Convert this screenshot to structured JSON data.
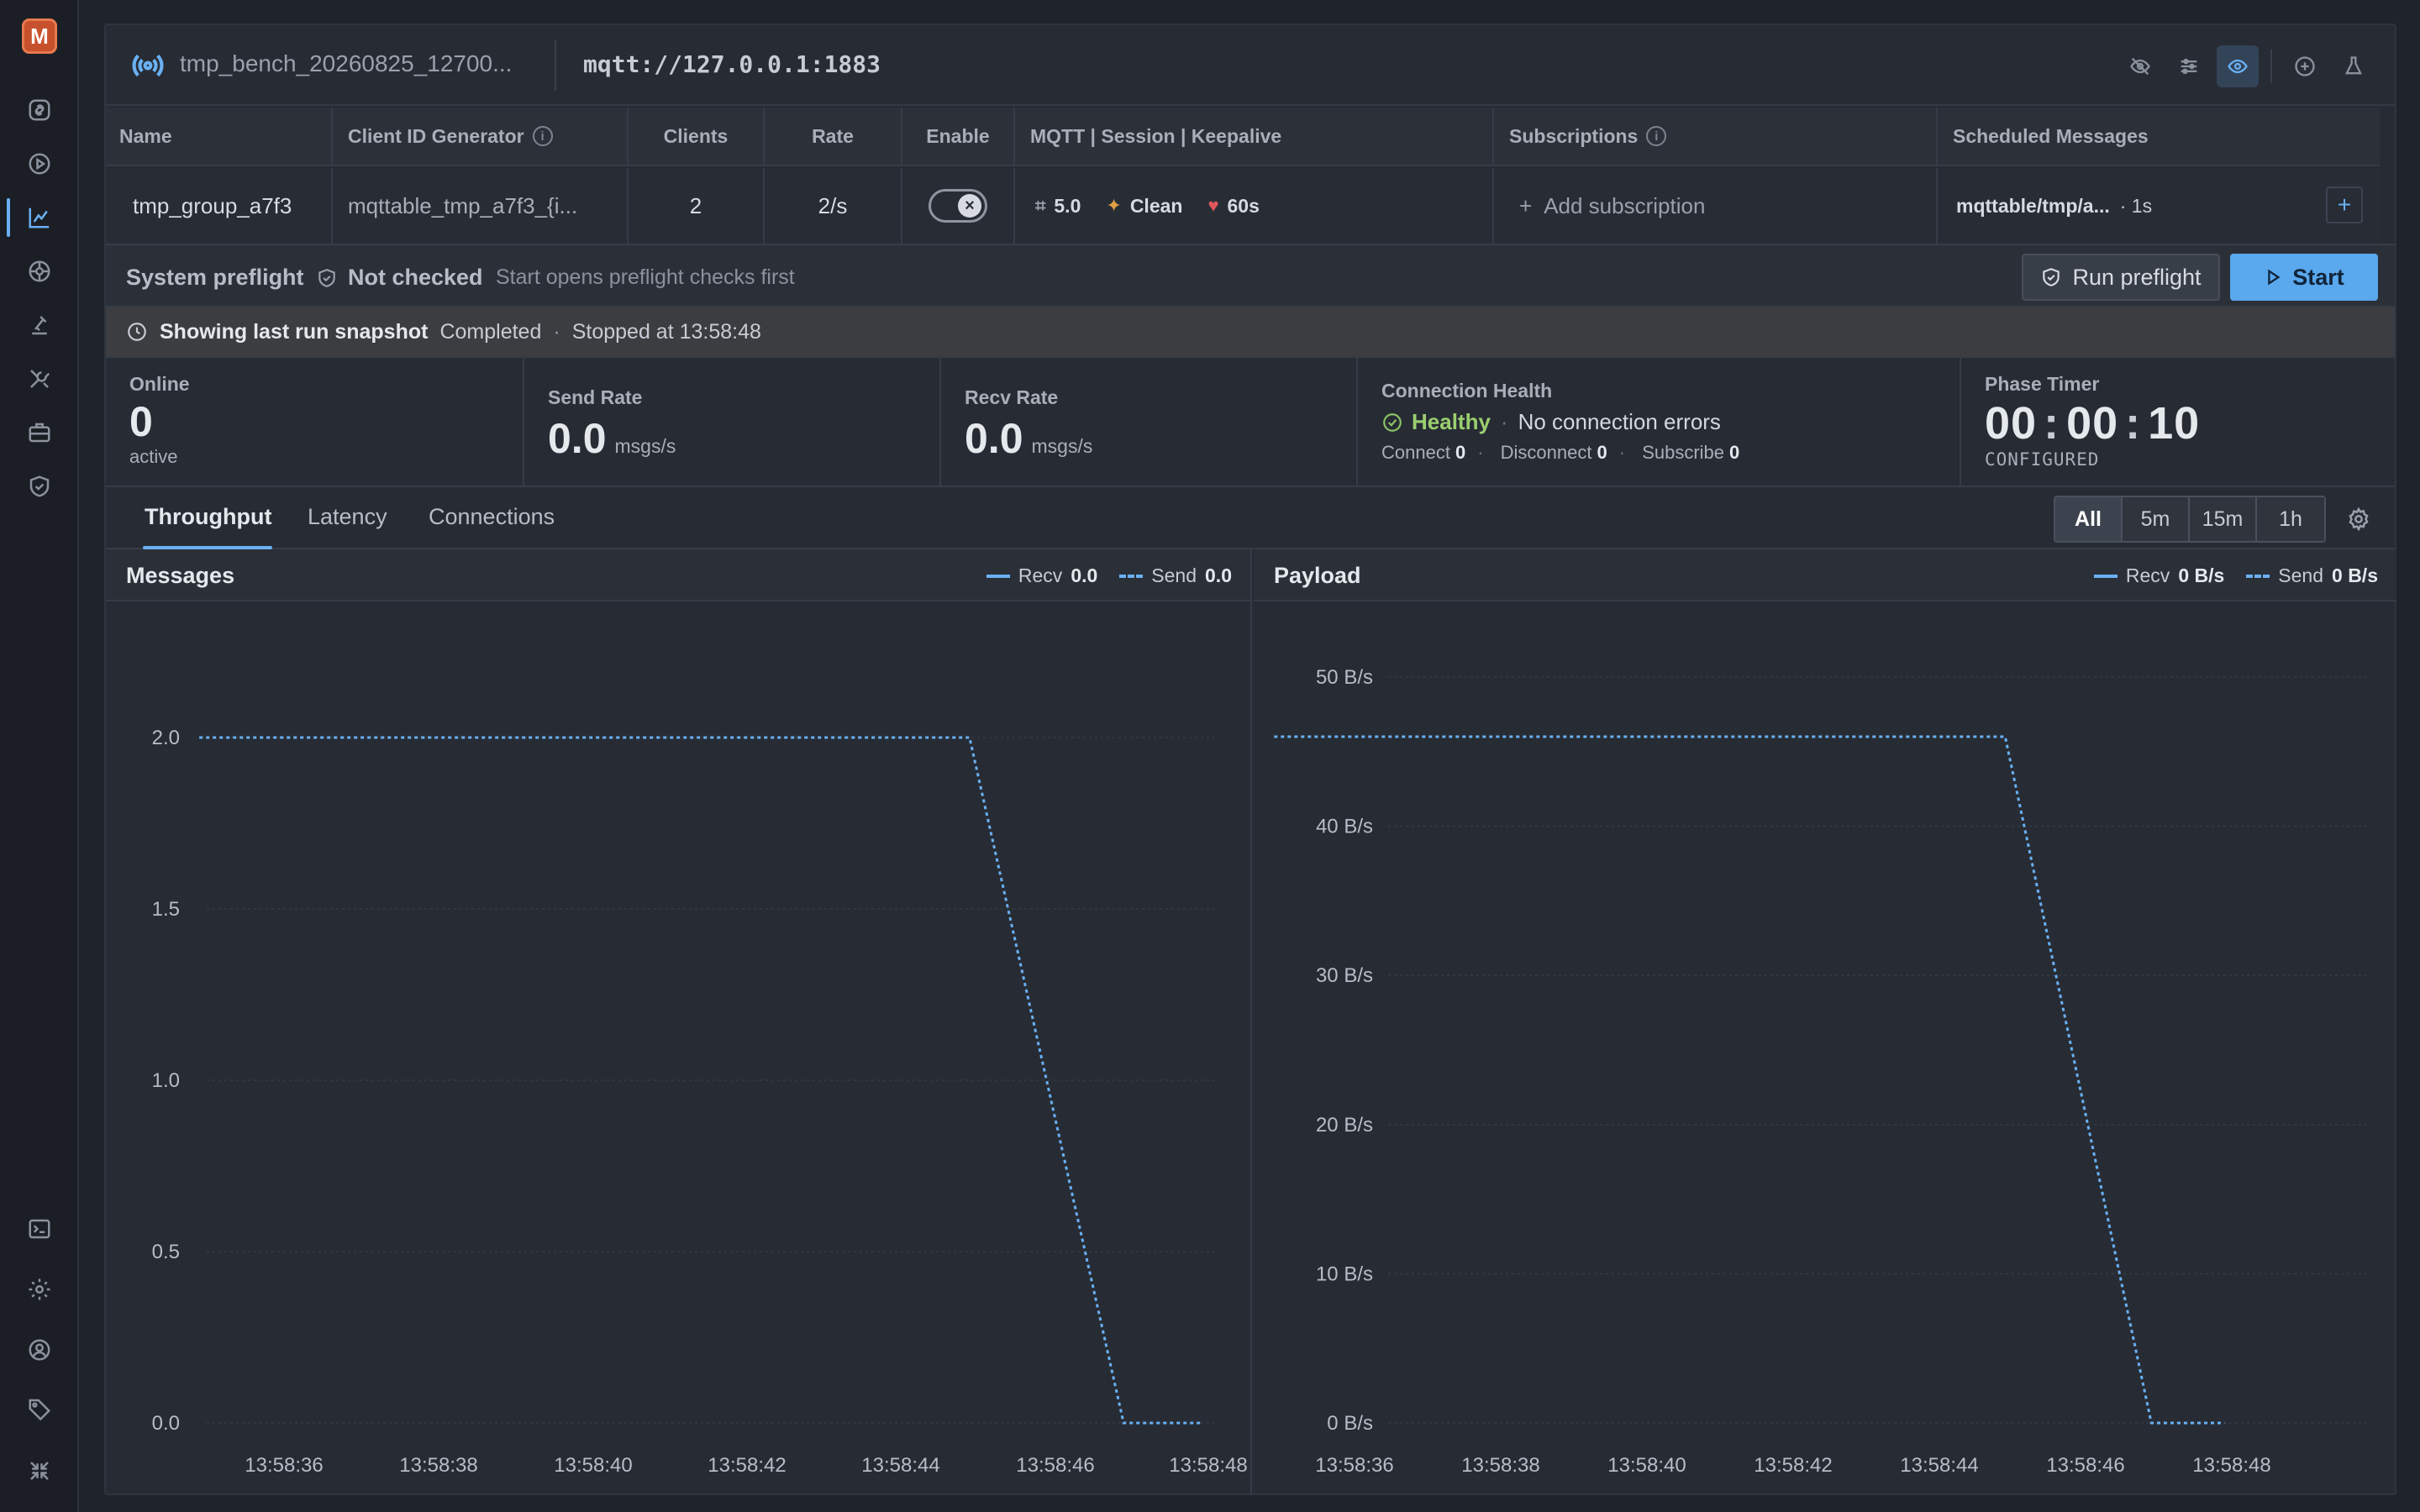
{
  "app": {
    "logo_letter": "M",
    "accent": "#6ab0f3"
  },
  "sidebar": {
    "top_items": [
      {
        "icon": "link-icon",
        "name": "sidebar-item-connections"
      },
      {
        "icon": "play-circle-icon",
        "name": "sidebar-item-run"
      },
      {
        "icon": "chart-icon",
        "name": "sidebar-item-benchmark",
        "active": true
      },
      {
        "icon": "broker-icon",
        "name": "sidebar-item-broker"
      },
      {
        "icon": "flask-icon",
        "name": "sidebar-item-lab"
      },
      {
        "icon": "tools-icon",
        "name": "sidebar-item-tools"
      },
      {
        "icon": "briefcase-icon",
        "name": "sidebar-item-cases"
      },
      {
        "icon": "shield-icon",
        "name": "sidebar-item-security"
      }
    ],
    "bottom_items": [
      {
        "icon": "terminal-icon",
        "name": "sidebar-item-console"
      },
      {
        "icon": "gear-icon",
        "name": "sidebar-item-settings"
      },
      {
        "icon": "user-icon",
        "name": "sidebar-item-account"
      },
      {
        "icon": "tag-icon",
        "name": "sidebar-item-tags"
      },
      {
        "icon": "collapse-icon",
        "name": "sidebar-item-collapse"
      }
    ]
  },
  "topbar": {
    "bench_name": "tmp_bench_20260825_12700...",
    "broker_url": "mqtt://127.0.0.1:1883",
    "actions": [
      "eye-off-icon",
      "sliders-icon",
      "eye-icon",
      "plus-circle-icon",
      "flask-icon"
    ]
  },
  "table": {
    "headers": {
      "name": "Name",
      "client_id": "Client ID Generator",
      "clients": "Clients",
      "rate": "Rate",
      "enable": "Enable",
      "mqtt": "MQTT | Session | Keepalive",
      "subscriptions": "Subscriptions",
      "scheduled": "Scheduled Messages"
    },
    "row": {
      "name": "tmp_group_a7f3",
      "client_id": "mqttable_tmp_a7f3_{i...",
      "clients": "2",
      "rate": "2/s",
      "enabled": false,
      "mqtt_version": "5.0",
      "session": "Clean",
      "keepalive": "60s",
      "add_subscription": "Add subscription",
      "scheduled_topic": "mqttable/tmp/a...",
      "scheduled_interval": "· 1s",
      "add_label": "+"
    }
  },
  "preflight": {
    "label": "System preflight",
    "status": "Not checked",
    "hint": "Start opens preflight checks first",
    "run_label": "Run preflight",
    "start_label": "Start"
  },
  "snapshot": {
    "title": "Showing last run snapshot",
    "status": "Completed",
    "dot": "·",
    "stopped": "Stopped at 13:58:48"
  },
  "stats": {
    "online": {
      "label": "Online",
      "value": "0",
      "sub": "active"
    },
    "send_rate": {
      "label": "Send Rate",
      "value": "0.0",
      "unit": "msgs/s"
    },
    "recv_rate": {
      "label": "Recv Rate",
      "value": "0.0",
      "unit": "msgs/s"
    },
    "health": {
      "label": "Connection Health",
      "status": "Healthy",
      "sep": "·",
      "message": "No connection errors",
      "connect_label": "Connect",
      "connect": "0",
      "disconnect_label": "Disconnect",
      "disconnect": "0",
      "subscribe_label": "Subscribe",
      "subscribe": "0",
      "dot": "·"
    },
    "timer": {
      "label": "Phase Timer",
      "hh": "00",
      "mm": "00",
      "ss": "10",
      "colon": ":",
      "sub": "CONFIGURED"
    }
  },
  "tabs": {
    "items": [
      "Throughput",
      "Latency",
      "Connections"
    ],
    "active": "Throughput",
    "ranges": [
      "All",
      "5m",
      "15m",
      "1h"
    ],
    "active_range": "All"
  },
  "chart_data": [
    {
      "type": "line",
      "title": "Messages",
      "legend": [
        {
          "name": "Recv",
          "value": "0.0",
          "style": "solid"
        },
        {
          "name": "Send",
          "value": "0.0",
          "style": "dashed"
        }
      ],
      "x": [
        "13:58:36",
        "13:58:38",
        "13:58:40",
        "13:58:42",
        "13:58:44",
        "13:58:46",
        "13:58:48"
      ],
      "x_range": [
        34.9,
        48.0
      ],
      "ylim": [
        0,
        2.2
      ],
      "y_ticks": [
        0.0,
        0.5,
        1.0,
        1.5,
        2.0
      ],
      "y_tick_labels": [
        "0.0",
        "0.5",
        "1.0",
        "1.5",
        "2.0"
      ],
      "series": [
        {
          "name": "Send",
          "style": "dashed",
          "points": [
            [
              34.9,
              2.0
            ],
            [
              44.9,
              2.0
            ],
            [
              46.9,
              0.0
            ],
            [
              47.9,
              0.0
            ]
          ]
        }
      ],
      "grid": true,
      "legend_position": "top-right"
    },
    {
      "type": "line",
      "title": "Payload",
      "legend": [
        {
          "name": "Recv",
          "value": "0 B/s",
          "style": "solid"
        },
        {
          "name": "Send",
          "value": "0 B/s",
          "style": "dashed"
        }
      ],
      "x": [
        "13:58:36",
        "13:58:38",
        "13:58:40",
        "13:58:42",
        "13:58:44",
        "13:58:46",
        "13:58:48"
      ],
      "x_range": [
        34.9,
        48.0
      ],
      "ylim": [
        0,
        50
      ],
      "y_ticks": [
        0,
        10,
        20,
        30,
        40,
        50
      ],
      "y_tick_labels": [
        "0 B/s",
        "10 B/s",
        "20 B/s",
        "30 B/s",
        "40 B/s",
        "50 B/s"
      ],
      "series": [
        {
          "name": "Send",
          "style": "dashed",
          "points": [
            [
              34.9,
              46
            ],
            [
              44.9,
              46
            ],
            [
              46.9,
              0
            ],
            [
              47.9,
              0
            ]
          ]
        }
      ],
      "grid": true,
      "legend_position": "top-right"
    }
  ]
}
